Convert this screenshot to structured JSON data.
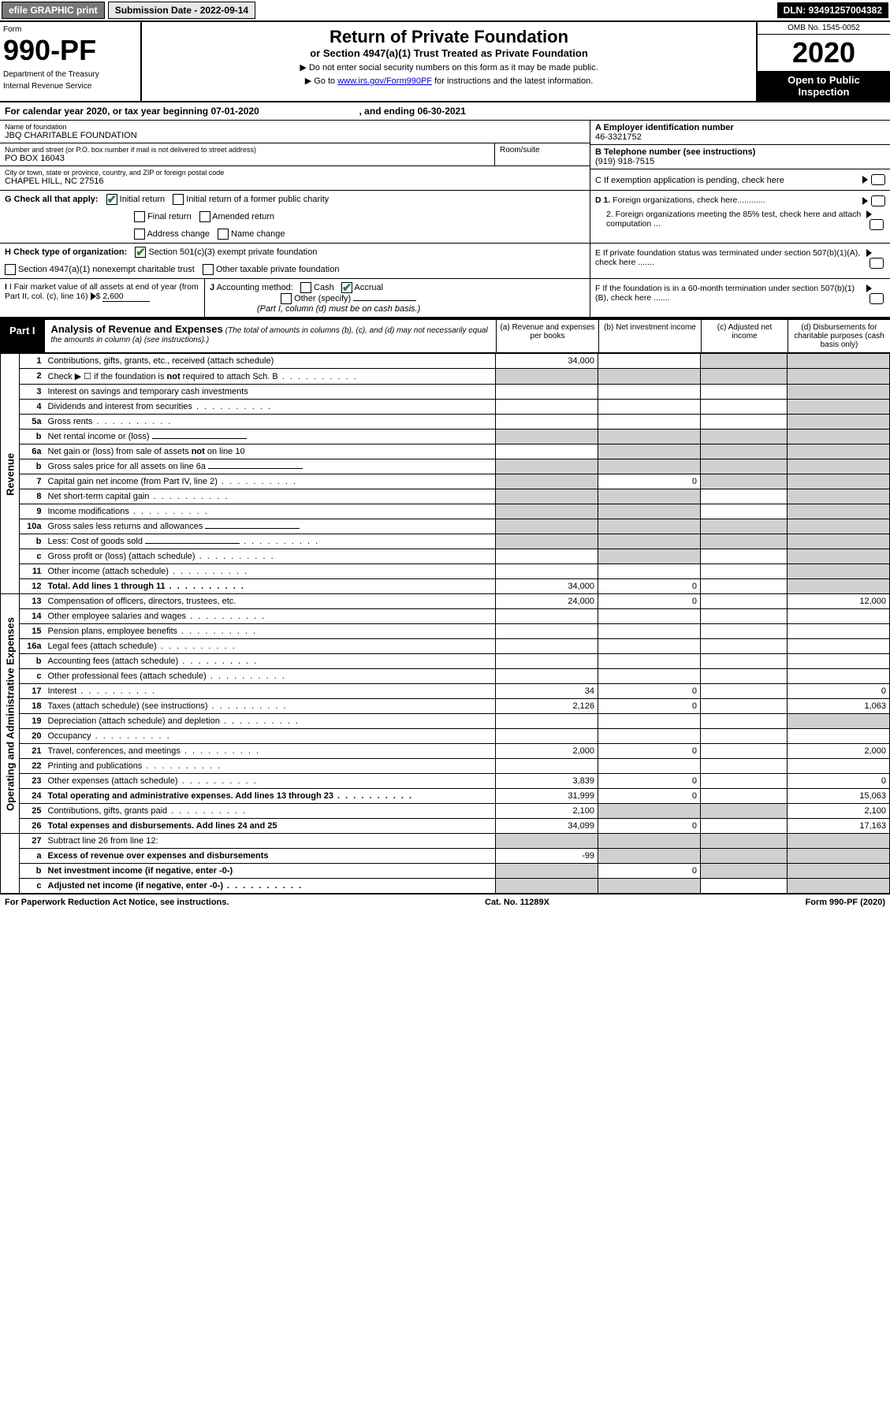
{
  "topbar": {
    "efile": "efile GRAPHIC print",
    "submission_label": "Submission Date - 2022-09-14",
    "dln": "DLN: 93491257004382"
  },
  "header": {
    "form_label": "Form",
    "form_number": "990-PF",
    "dept1": "Department of the Treasury",
    "dept2": "Internal Revenue Service",
    "title": "Return of Private Foundation",
    "subtitle": "or Section 4947(a)(1) Trust Treated as Private Foundation",
    "instr1": "▶ Do not enter social security numbers on this form as it may be made public.",
    "instr2_pre": "▶ Go to ",
    "instr2_link": "www.irs.gov/Form990PF",
    "instr2_post": " for instructions and the latest information.",
    "omb": "OMB No. 1545-0052",
    "year": "2020",
    "otp1": "Open to Public",
    "otp2": "Inspection"
  },
  "calyear": {
    "text_a": "For calendar year 2020, or tax year beginning 07-01-2020",
    "text_b": ", and ending 06-30-2021"
  },
  "info": {
    "name_lbl": "Name of foundation",
    "name_val": "JBQ CHARITABLE FOUNDATION",
    "addr_lbl": "Number and street (or P.O. box number if mail is not delivered to street address)",
    "addr_val": "PO BOX 16043",
    "room_lbl": "Room/suite",
    "room_val": "",
    "city_lbl": "City or town, state or province, country, and ZIP or foreign postal code",
    "city_val": "CHAPEL HILL, NC  27516",
    "a_lbl": "A Employer identification number",
    "a_val": "46-3321752",
    "b_lbl": "B Telephone number (see instructions)",
    "b_val": "(919) 918-7515",
    "c_lbl": "C If exemption application is pending, check here",
    "d1_lbl": "D 1. Foreign organizations, check here............",
    "d2_lbl": "2. Foreign organizations meeting the 85% test, check here and attach computation ...",
    "e_lbl": "E  If private foundation status was terminated under section 507(b)(1)(A), check here .......",
    "f_lbl": "F  If the foundation is in a 60-month termination under section 507(b)(1)(B), check here .......",
    "g_lbl": "G Check all that apply:",
    "g_opts": [
      "Initial return",
      "Initial return of a former public charity",
      "Final return",
      "Amended return",
      "Address change",
      "Name change"
    ],
    "h_lbl": "H Check type of organization:",
    "h_opts": [
      "Section 501(c)(3) exempt private foundation",
      "Section 4947(a)(1) nonexempt charitable trust",
      "Other taxable private foundation"
    ],
    "i_lbl": "I Fair market value of all assets at end of year (from Part II, col. (c), line 16)",
    "i_val": "2,600",
    "j_lbl": "J Accounting method:",
    "j_opts": [
      "Cash",
      "Accrual",
      "Other (specify)"
    ],
    "j_note": "(Part I, column (d) must be on cash basis.)"
  },
  "part1": {
    "label": "Part I",
    "title": "Analysis of Revenue and Expenses",
    "title_note": "(The total of amounts in columns (b), (c), and (d) may not necessarily equal the amounts in column (a) (see instructions).)",
    "col_a": "(a)   Revenue and expenses per books",
    "col_b": "(b)  Net investment income",
    "col_c": "(c)  Adjusted net income",
    "col_d": "(d)  Disbursements for charitable purposes (cash basis only)"
  },
  "sidebars": {
    "revenue": "Revenue",
    "expenses": "Operating and Administrative Expenses"
  },
  "rows": [
    {
      "n": "1",
      "d": "",
      "a": "34,000",
      "b": "",
      "c": "",
      "shade_b": false,
      "shade_c": true,
      "shade_d": true
    },
    {
      "n": "2",
      "d": "",
      "a": "",
      "b": "",
      "c": "",
      "shade_a": true,
      "shade_b": true,
      "shade_c": true,
      "shade_d": true,
      "dots": true
    },
    {
      "n": "3",
      "d": "",
      "a": "",
      "b": "",
      "c": "",
      "shade_d": true
    },
    {
      "n": "4",
      "d": "",
      "a": "",
      "b": "",
      "c": "",
      "shade_d": true,
      "dots": true
    },
    {
      "n": "5a",
      "d": "",
      "a": "",
      "b": "",
      "c": "",
      "shade_d": true,
      "dots": true
    },
    {
      "n": "b",
      "d": "",
      "a": "",
      "b": "",
      "c": "",
      "shade_a": true,
      "shade_b": true,
      "shade_c": true,
      "shade_d": true,
      "inline": true
    },
    {
      "n": "6a",
      "d": "",
      "a": "",
      "b": "",
      "c": "",
      "shade_b": true,
      "shade_c": true,
      "shade_d": true
    },
    {
      "n": "b",
      "d": "",
      "a": "",
      "b": "",
      "c": "",
      "shade_a": true,
      "shade_b": true,
      "shade_c": true,
      "shade_d": true,
      "inline": true
    },
    {
      "n": "7",
      "d": "",
      "a": "",
      "b": "0",
      "c": "",
      "shade_a": true,
      "shade_c": true,
      "shade_d": true,
      "dots": true
    },
    {
      "n": "8",
      "d": "",
      "a": "",
      "b": "",
      "c": "",
      "shade_a": true,
      "shade_b": true,
      "shade_d": true,
      "dots": true
    },
    {
      "n": "9",
      "d": "",
      "a": "",
      "b": "",
      "c": "",
      "shade_a": true,
      "shade_b": true,
      "shade_d": true,
      "dots": true
    },
    {
      "n": "10a",
      "d": "",
      "a": "",
      "b": "",
      "c": "",
      "shade_a": true,
      "shade_b": true,
      "shade_c": true,
      "shade_d": true,
      "inline": true
    },
    {
      "n": "b",
      "d": "",
      "a": "",
      "b": "",
      "c": "",
      "shade_a": true,
      "shade_b": true,
      "shade_c": true,
      "shade_d": true,
      "inline": true,
      "dots": true
    },
    {
      "n": "c",
      "d": "",
      "a": "",
      "b": "",
      "c": "",
      "shade_b": true,
      "shade_d": true,
      "dots": true
    },
    {
      "n": "11",
      "d": "",
      "a": "",
      "b": "",
      "c": "",
      "shade_d": true,
      "dots": true
    },
    {
      "n": "12",
      "d": "",
      "a": "34,000",
      "b": "0",
      "c": "",
      "shade_d": true,
      "bold": true,
      "dots": true
    },
    {
      "n": "13",
      "d": "12,000",
      "a": "24,000",
      "b": "0",
      "c": ""
    },
    {
      "n": "14",
      "d": "",
      "a": "",
      "b": "",
      "c": "",
      "dots": true
    },
    {
      "n": "15",
      "d": "",
      "a": "",
      "b": "",
      "c": "",
      "dots": true
    },
    {
      "n": "16a",
      "d": "",
      "a": "",
      "b": "",
      "c": "",
      "dots": true
    },
    {
      "n": "b",
      "d": "",
      "a": "",
      "b": "",
      "c": "",
      "dots": true
    },
    {
      "n": "c",
      "d": "",
      "a": "",
      "b": "",
      "c": "",
      "dots": true
    },
    {
      "n": "17",
      "d": "0",
      "a": "34",
      "b": "0",
      "c": "",
      "dots": true
    },
    {
      "n": "18",
      "d": "1,063",
      "a": "2,126",
      "b": "0",
      "c": "",
      "dots": true
    },
    {
      "n": "19",
      "d": "",
      "a": "",
      "b": "",
      "c": "",
      "shade_d": true,
      "dots": true
    },
    {
      "n": "20",
      "d": "",
      "a": "",
      "b": "",
      "c": "",
      "dots": true
    },
    {
      "n": "21",
      "d": "2,000",
      "a": "2,000",
      "b": "0",
      "c": "",
      "dots": true
    },
    {
      "n": "22",
      "d": "",
      "a": "",
      "b": "",
      "c": "",
      "dots": true
    },
    {
      "n": "23",
      "d": "0",
      "a": "3,839",
      "b": "0",
      "c": "",
      "dots": true
    },
    {
      "n": "24",
      "d": "15,063",
      "a": "31,999",
      "b": "0",
      "c": "",
      "bold": true,
      "dots": true
    },
    {
      "n": "25",
      "d": "2,100",
      "a": "2,100",
      "b": "",
      "c": "",
      "shade_b": true,
      "shade_c": true,
      "dots": true
    },
    {
      "n": "26",
      "d": "17,163",
      "a": "34,099",
      "b": "0",
      "c": "",
      "bold": true
    },
    {
      "n": "27",
      "d": "",
      "a": "",
      "b": "",
      "c": "",
      "shade_a": true,
      "shade_b": true,
      "shade_c": true,
      "shade_d": true
    },
    {
      "n": "a",
      "d": "",
      "a": "-99",
      "b": "",
      "c": "",
      "bold": true,
      "shade_b": true,
      "shade_c": true,
      "shade_d": true
    },
    {
      "n": "b",
      "d": "",
      "a": "",
      "b": "0",
      "c": "",
      "bold": true,
      "shade_a": true,
      "shade_c": true,
      "shade_d": true
    },
    {
      "n": "c",
      "d": "",
      "a": "",
      "b": "",
      "c": "",
      "bold": true,
      "shade_a": true,
      "shade_b": true,
      "shade_d": true,
      "dots": true
    }
  ],
  "footer": {
    "left": "For Paperwork Reduction Act Notice, see instructions.",
    "center": "Cat. No. 11289X",
    "right": "Form 990-PF (2020)"
  },
  "colors": {
    "shaded": "#d0d0d0",
    "link": "#0000cc",
    "check": "#2e7d32"
  }
}
